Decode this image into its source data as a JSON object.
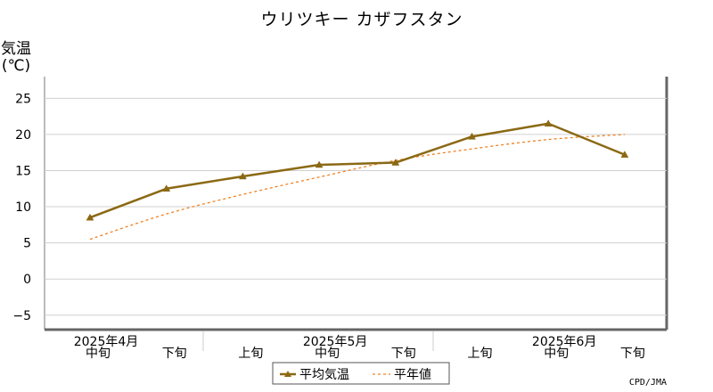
{
  "chart_data": {
    "type": "line",
    "title": "ウリツキー カザフスタン",
    "ylabel": [
      "気温",
      "(℃)"
    ],
    "ylim": [
      -7,
      28
    ],
    "yticks": [
      -5,
      0,
      5,
      10,
      15,
      20,
      25
    ],
    "categories": [
      "中旬",
      "下旬",
      "上旬",
      "中旬",
      "下旬",
      "上旬",
      "中旬",
      "下旬"
    ],
    "month_labels": [
      {
        "label": "2025年4月",
        "category_index": 0
      },
      {
        "label": "2025年5月",
        "category_index": 3
      },
      {
        "label": "2025年6月",
        "category_index": 6
      }
    ],
    "grid": true,
    "legend_position": "bottom-center",
    "series": [
      {
        "name": "平均気温",
        "values": [
          8.5,
          12.5,
          14.2,
          15.8,
          16.1,
          19.7,
          21.5,
          17.2
        ],
        "color": "#8B6914",
        "style": "solid",
        "marker": "triangle"
      },
      {
        "name": "平年値",
        "values": [
          5.5,
          9.0,
          11.7,
          14.1,
          16.4,
          18.0,
          19.3,
          20.0
        ],
        "color": "#F08020",
        "style": "dotted"
      }
    ],
    "credit": "CPD/JMA"
  }
}
